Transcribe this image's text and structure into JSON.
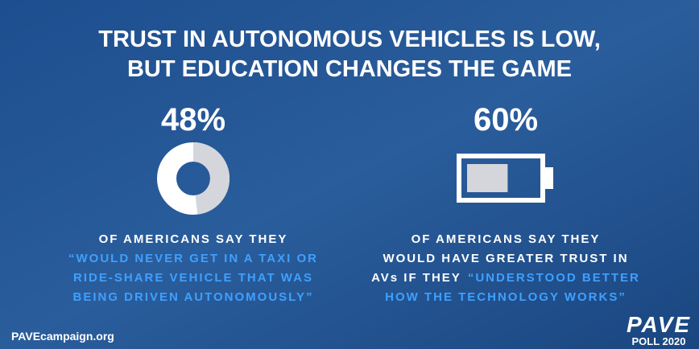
{
  "header": {
    "title_lines": [
      "TRUST IN AUTONOMOUS VEHICLES IS LOW,",
      "BUT EDUCATION CHANGES THE GAME"
    ]
  },
  "stats": [
    {
      "kind": "donut",
      "value": 48,
      "value_label": "48%",
      "lines": [
        [
          {
            "text": "OF AMERICANS SAY THEY",
            "highlight": false
          }
        ],
        [
          {
            "text": "“WOULD NEVER GET IN A TAXI OR",
            "highlight": true
          }
        ],
        [
          {
            "text": "RIDE-SHARE VEHICLE THAT WAS",
            "highlight": true
          }
        ],
        [
          {
            "text": "BEING DRIVEN AUTONOMOUSLY”",
            "highlight": true
          }
        ]
      ]
    },
    {
      "kind": "battery",
      "value": 60,
      "value_label": "60%",
      "lines": [
        [
          {
            "text": "OF AMERICANS SAY THEY",
            "highlight": false
          }
        ],
        [
          {
            "text": "WOULD HAVE GREATER TRUST IN",
            "highlight": false
          }
        ],
        [
          {
            "text": "AVs IF THEY",
            "highlight": false
          },
          {
            "text": "“UNDERSTOOD BETTER",
            "highlight": true
          }
        ],
        [
          {
            "text": "HOW THE TECHNOLOGY WORKS”",
            "highlight": true
          }
        ]
      ]
    }
  ],
  "footer": {
    "website": "PAVEcampaign.org",
    "logo": "PAVE",
    "logo_sub": "POLL 2020"
  }
}
